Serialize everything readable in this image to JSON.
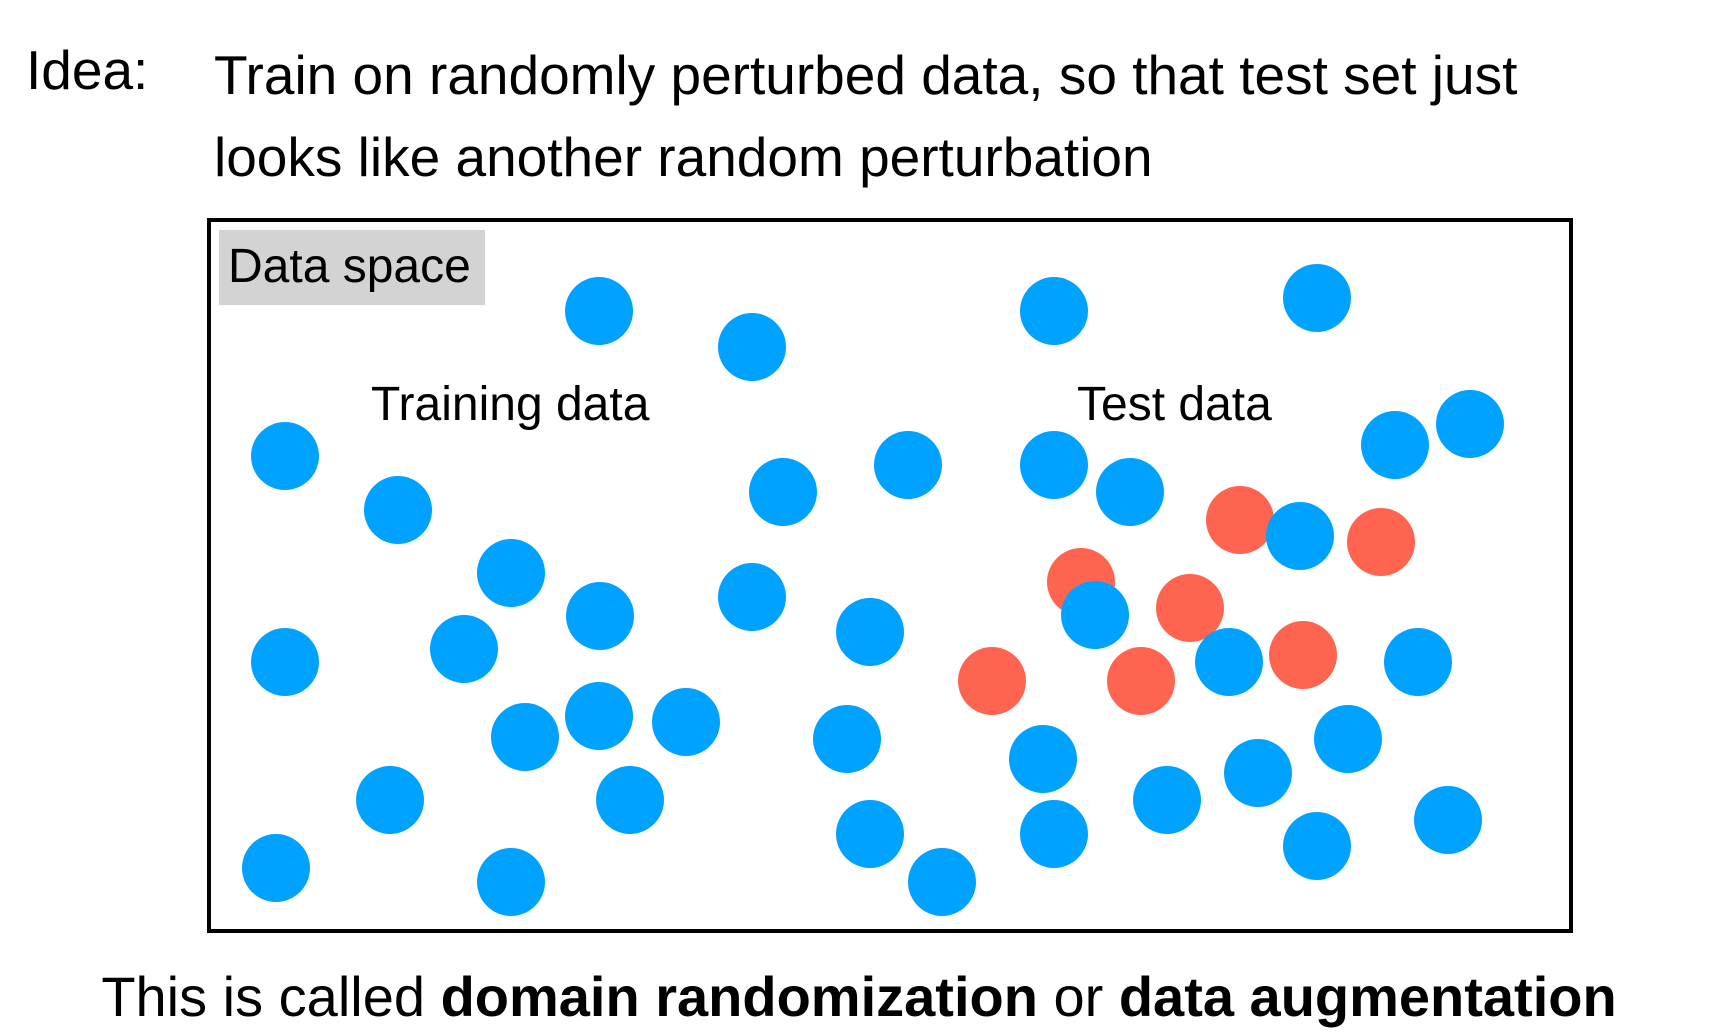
{
  "idea": {
    "label": "Idea:",
    "line1": "Train on randomly perturbed data, so that test set just",
    "line2": "looks like another random perturbation"
  },
  "diagram": {
    "box_label": "Data space",
    "training_label": "Training data",
    "test_label": "Test data",
    "colors": {
      "training_point": "#00a2ff",
      "test_point": "#ff6450",
      "box_border": "#000000",
      "label_bg": "#d3d3d3"
    }
  },
  "caption": {
    "prefix": "This is called ",
    "term1": "domain randomization",
    "middle": " or ",
    "term2": "data augmentation"
  }
}
